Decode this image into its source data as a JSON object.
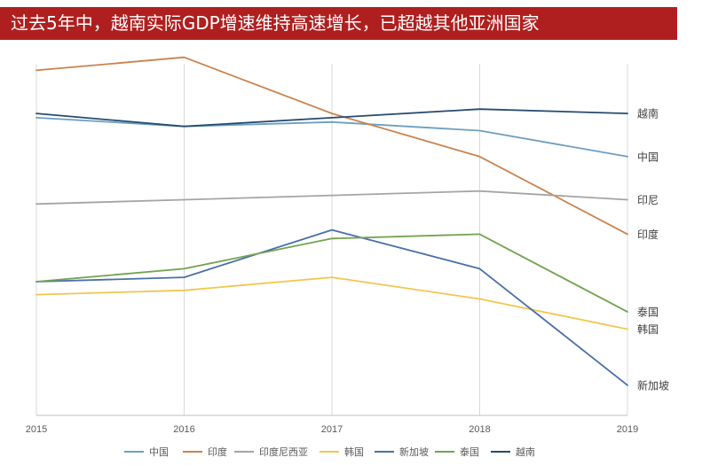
{
  "header": {
    "title": "过去5年中，越南实际GDP增速维持高速增长，已超越其他亚洲国家"
  },
  "chart_data": {
    "type": "line",
    "title": "过去5年中，越南实际GDP增速维持高速增长，已超越其他亚洲国家",
    "xlabel": "",
    "ylabel": "",
    "x": [
      "2015",
      "2016",
      "2017",
      "2018",
      "2019"
    ],
    "ylim": [
      0,
      8.5
    ],
    "grid": {
      "vertical": true,
      "horizontal": false
    },
    "y_axis_shown": false,
    "legend_position": "bottom",
    "series": [
      {
        "name": "中国",
        "end_label": "中国",
        "color": "#6d9ec2",
        "values": [
          6.9,
          6.7,
          6.8,
          6.6,
          6.0
        ]
      },
      {
        "name": "印度",
        "end_label": "印度",
        "color": "#c8834f",
        "values": [
          8.0,
          8.3,
          7.0,
          6.0,
          4.2
        ]
      },
      {
        "name": "印度尼西亚",
        "end_label": "印尼",
        "color": "#a5a5a5",
        "values": [
          4.9,
          5.0,
          5.1,
          5.2,
          5.0
        ]
      },
      {
        "name": "韩国",
        "end_label": "韩国",
        "color": "#f2c64e",
        "values": [
          2.8,
          2.9,
          3.2,
          2.7,
          2.0
        ]
      },
      {
        "name": "新加坡",
        "end_label": "新加坡",
        "color": "#4a6fa8",
        "values": [
          3.1,
          3.2,
          4.3,
          3.4,
          0.7
        ]
      },
      {
        "name": "泰国",
        "end_label": "泰国",
        "color": "#72a24f",
        "values": [
          3.1,
          3.4,
          4.1,
          4.2,
          2.4
        ]
      },
      {
        "name": "越南",
        "end_label": "越南",
        "color": "#264b6e",
        "values": [
          7.0,
          6.7,
          6.9,
          7.1,
          7.0
        ]
      }
    ]
  }
}
